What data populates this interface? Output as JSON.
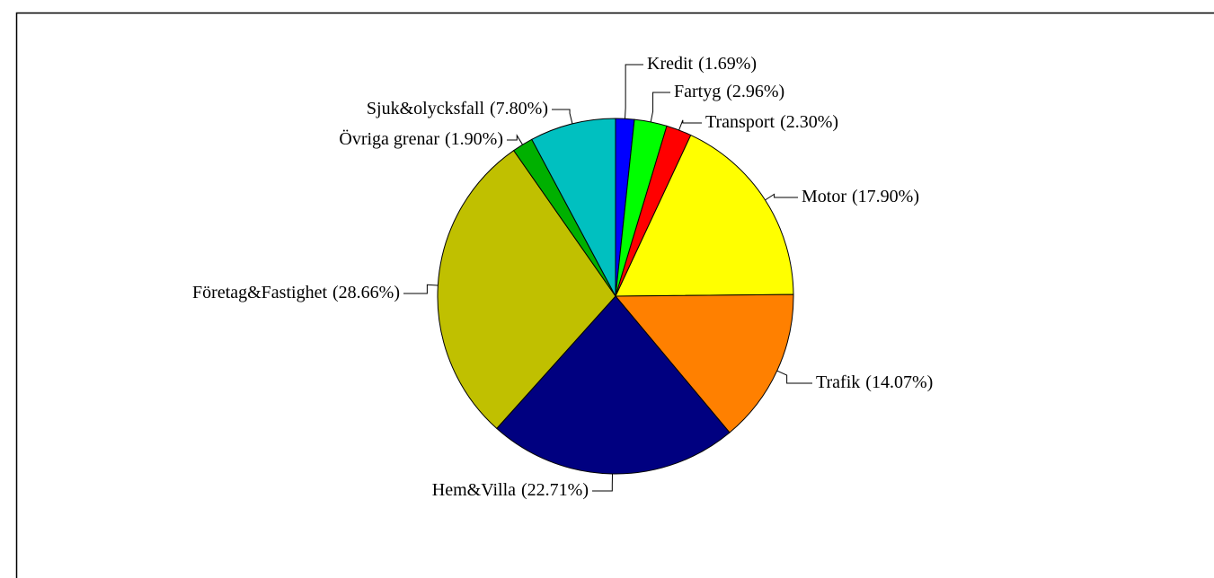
{
  "chart_data": {
    "type": "pie",
    "categories": [
      "Kredit",
      "Fartyg",
      "Transport",
      "Motor",
      "Trafik",
      "Hem&Villa",
      "Företag&Fastighet",
      "Övriga grenar",
      "Sjuk&olycksfall"
    ],
    "values": [
      1.69,
      2.96,
      2.3,
      17.9,
      14.07,
      22.71,
      28.66,
      1.9,
      7.8
    ],
    "value_labels": [
      "(1.69%)",
      "(2.96%)",
      "(2.30%)",
      "(17.90%)",
      "(14.07%)",
      "(22.71%)",
      "(28.66%)",
      "(1.90%)",
      "(7.80%)"
    ],
    "colors": [
      "#0000ff",
      "#00ff00",
      "#ff0000",
      "#ffff00",
      "#ff8000",
      "#000080",
      "#c0c000",
      "#00b000",
      "#00c0c0"
    ]
  }
}
